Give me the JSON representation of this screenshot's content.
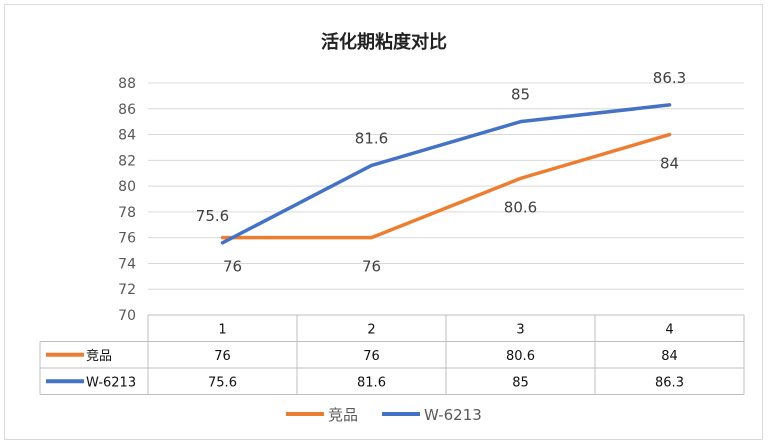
{
  "chart_data": {
    "type": "line",
    "title": "活化期粘度对比",
    "categories": [
      "1",
      "2",
      "3",
      "4"
    ],
    "series": [
      {
        "name": "竞品",
        "values": [
          76,
          76,
          80.6,
          84
        ],
        "color": "#ED7D31"
      },
      {
        "name": "W-6213",
        "values": [
          75.6,
          81.6,
          85,
          86.3
        ],
        "color": "#4472C4"
      }
    ],
    "ylim": [
      70,
      88
    ],
    "yticks": [
      70,
      72,
      74,
      76,
      78,
      80,
      82,
      84,
      86,
      88
    ],
    "data_table": true,
    "grid": true,
    "legend": "bottom"
  }
}
